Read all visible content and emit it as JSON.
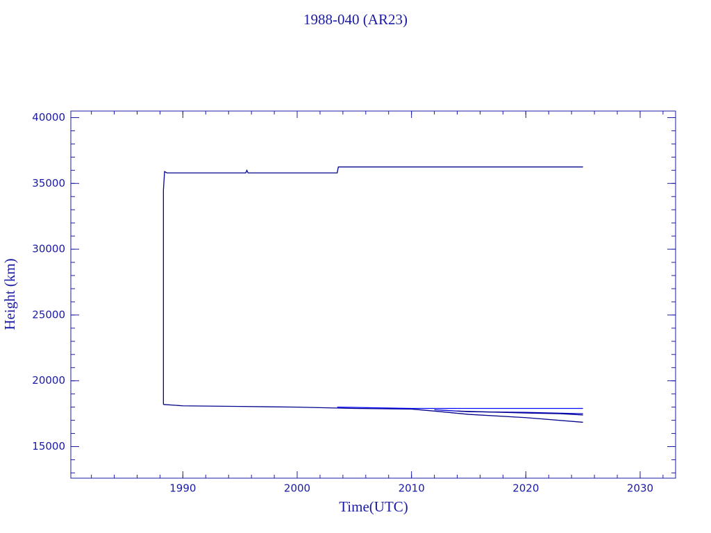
{
  "chart_data": {
    "type": "line",
    "title": "1988-040 (AR23)",
    "x_label": "Time(UTC)",
    "y_label": "Height (km)",
    "xlim": [
      1980.2,
      2033.1
    ],
    "ylim": [
      12600,
      40500
    ],
    "xticks": [
      1990,
      2000,
      2010,
      2020,
      2030
    ],
    "yticks": [
      15000,
      20000,
      25000,
      30000,
      35000,
      40000
    ],
    "axis_color": "#1a1aa6",
    "series": [
      {
        "color": "#00008b",
        "x": [
          1988.3,
          1988.3,
          1988.4,
          1988.6,
          1995.5,
          1995.6,
          1995.7,
          2003.5,
          2003.6,
          2025.0
        ],
        "values": [
          18200,
          34500,
          35900,
          35800,
          35800,
          36000,
          35800,
          35800,
          36250,
          36250
        ]
      },
      {
        "color": "#00008b",
        "x": [
          1988.3,
          1990,
          1995,
          2000,
          2005,
          2010,
          2012,
          2015,
          2020,
          2025
        ],
        "values": [
          18200,
          18100,
          18050,
          18000,
          17900,
          17850,
          17700,
          17450,
          17200,
          16850
        ]
      },
      {
        "color": "#0000ff",
        "x": [
          2003.5,
          2010,
          2015,
          2020,
          2025
        ],
        "values": [
          18000,
          17900,
          17900,
          17900,
          17900
        ]
      },
      {
        "color": "#0000cd",
        "x": [
          2012,
          2015,
          2020,
          2025
        ],
        "values": [
          17800,
          17650,
          17600,
          17500
        ]
      },
      {
        "color": "#00008b",
        "x": [
          2014,
          2020,
          2023,
          2025
        ],
        "values": [
          17700,
          17550,
          17500,
          17400
        ]
      }
    ]
  }
}
